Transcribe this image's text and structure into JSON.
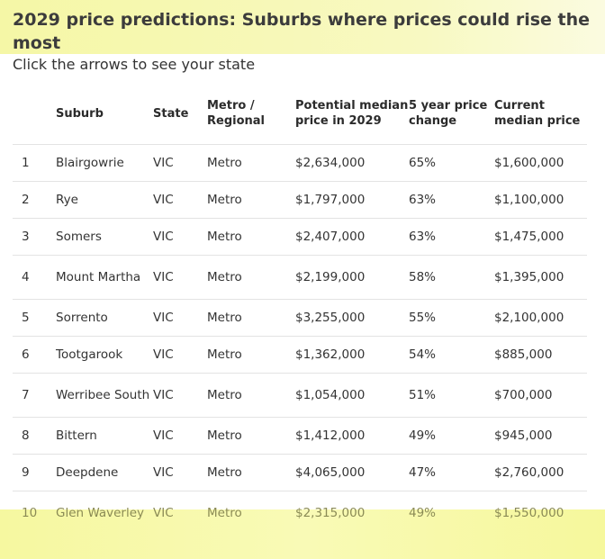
{
  "title": "2029 price predictions: Suburbs where prices could rise the most",
  "subtitle": "Click the arrows to see your state",
  "colors": {
    "highlight": "#f6f8a0",
    "text": "#333333"
  },
  "table": {
    "headers": [
      "",
      "Suburb",
      "State",
      "Metro / Regional",
      "Potential median price in 2029",
      "5 year price change",
      "Current median price"
    ],
    "rows": [
      [
        "1",
        "Blairgowrie",
        "VIC",
        "Metro",
        "$2,634,000",
        "65%",
        "$1,600,000"
      ],
      [
        "2",
        "Rye",
        "VIC",
        "Metro",
        "$1,797,000",
        "63%",
        "$1,100,000"
      ],
      [
        "3",
        "Somers",
        "VIC",
        "Metro",
        "$2,407,000",
        "63%",
        "$1,475,000"
      ],
      [
        "4",
        "Mount Martha",
        "VIC",
        "Metro",
        "$2,199,000",
        "58%",
        "$1,395,000"
      ],
      [
        "5",
        "Sorrento",
        "VIC",
        "Metro",
        "$3,255,000",
        "55%",
        "$2,100,000"
      ],
      [
        "6",
        "Tootgarook",
        "VIC",
        "Metro",
        "$1,362,000",
        "54%",
        "$885,000"
      ],
      [
        "7",
        "Werribee South",
        "VIC",
        "Metro",
        "$1,054,000",
        "51%",
        "$700,000"
      ],
      [
        "8",
        "Bittern",
        "VIC",
        "Metro",
        "$1,412,000",
        "49%",
        "$945,000"
      ],
      [
        "9",
        "Deepdene",
        "VIC",
        "Metro",
        "$4,065,000",
        "47%",
        "$2,760,000"
      ],
      [
        "10",
        "Glen Waverley",
        "VIC",
        "Metro",
        "$2,315,000",
        "49%",
        "$1,550,000"
      ]
    ]
  }
}
